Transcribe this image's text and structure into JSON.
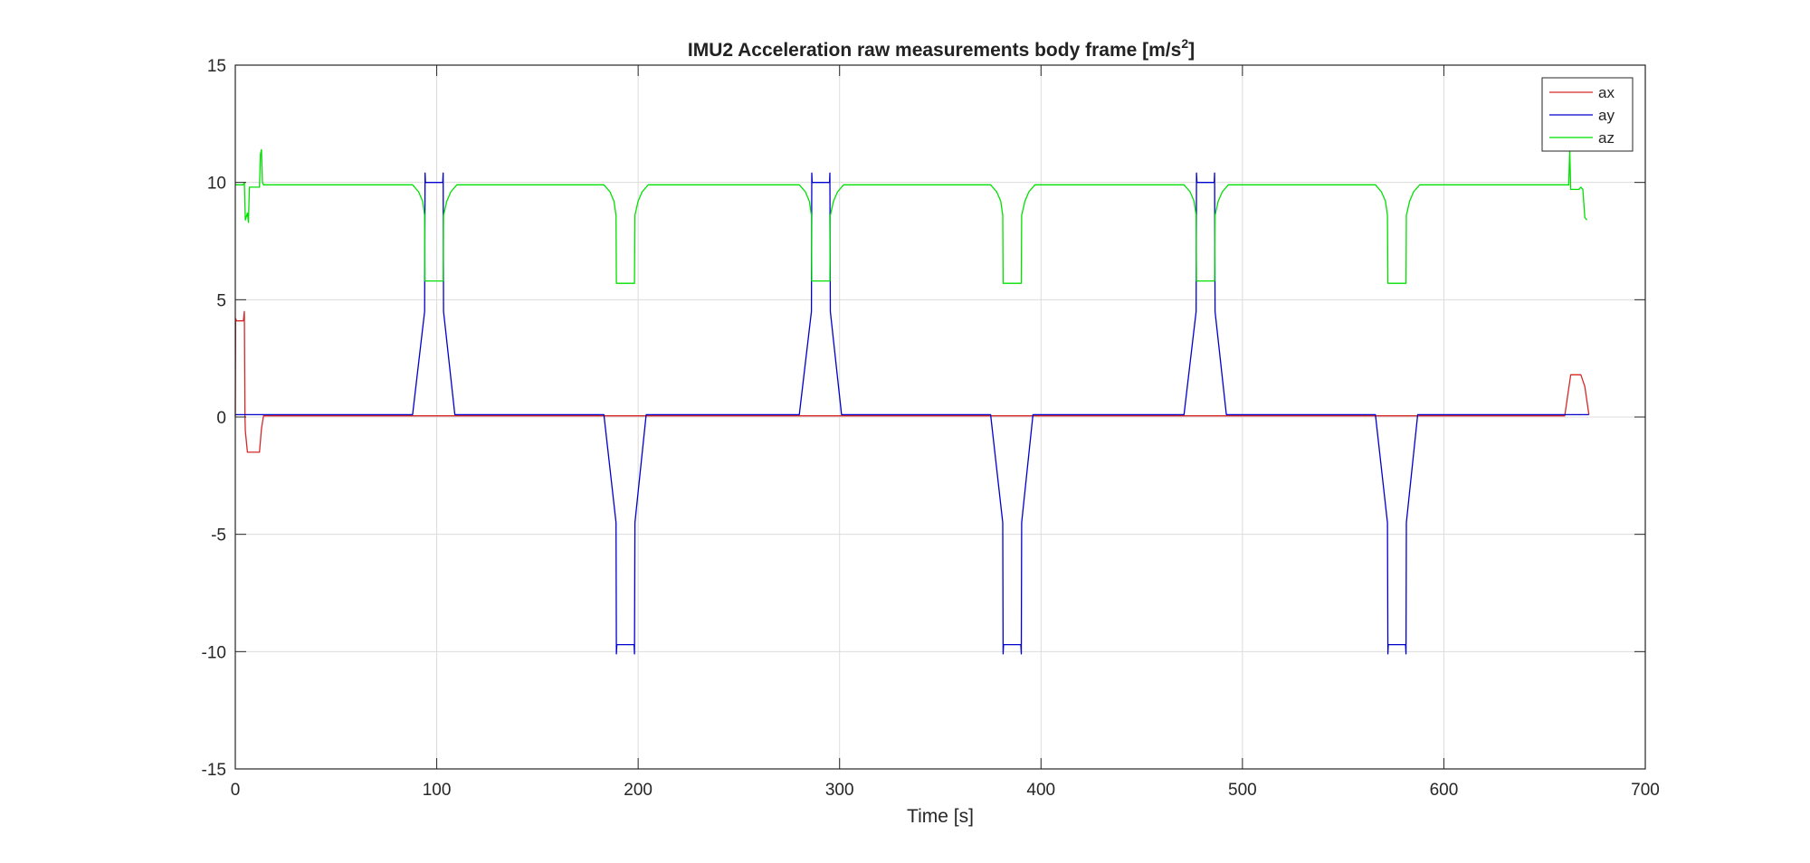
{
  "chart_data": {
    "type": "line",
    "title": "IMU2 Acceleration raw measurements body frame [m/s",
    "title_sup": "2",
    "title_end": "]",
    "xlabel": "Time [s]",
    "ylabel": "",
    "xlim": [
      0,
      700
    ],
    "ylim": [
      -15,
      15
    ],
    "xticks": [
      0,
      100,
      200,
      300,
      400,
      500,
      600,
      700
    ],
    "yticks": [
      -15,
      -10,
      -5,
      0,
      5,
      10,
      15
    ],
    "xtick_labels": [
      "0",
      "100",
      "200",
      "300",
      "400",
      "500",
      "600",
      "700"
    ],
    "ytick_labels": [
      "-15",
      "-10",
      "-5",
      "0",
      "5",
      "10",
      "15"
    ],
    "grid": true,
    "legend_position": "top-right",
    "series": [
      {
        "name": "ax",
        "color": "#d62728",
        "x": [
          0,
          0.2,
          0.6,
          4,
          4.5,
          4.8,
          5,
          6,
          7,
          12,
          13,
          14,
          100,
          200,
          300,
          400,
          500,
          600,
          660,
          663,
          668,
          670,
          672
        ],
        "y": [
          0,
          4.2,
          4.1,
          4.1,
          4.5,
          0,
          -0.6,
          -1.5,
          -1.5,
          -1.5,
          -0.5,
          0.05,
          0.05,
          0.05,
          0.05,
          0.05,
          0.05,
          0.05,
          0.05,
          1.8,
          1.8,
          1.3,
          0.1
        ]
      },
      {
        "name": "ay",
        "color": "#0000cc",
        "x": [
          0,
          88,
          94,
          94.2,
          94.4,
          103,
          103.2,
          103.4,
          109,
          183,
          189,
          189.2,
          189.4,
          198,
          198.2,
          198.4,
          204,
          280,
          286,
          286.2,
          286.4,
          295,
          295.2,
          295.4,
          301,
          375,
          381,
          381.2,
          381.4,
          390,
          390.2,
          390.4,
          396,
          471,
          477,
          477.2,
          477.4,
          486,
          486.2,
          486.4,
          492,
          566,
          572,
          572.2,
          572.4,
          581,
          581.2,
          581.4,
          587,
          672
        ],
        "y": [
          0.1,
          0.1,
          4.5,
          10.4,
          10,
          10,
          10.4,
          4.5,
          0.1,
          0.1,
          -4.5,
          -10.1,
          -9.7,
          -9.7,
          -10.1,
          -4.5,
          0.1,
          0.1,
          4.5,
          10.4,
          10,
          10,
          10.4,
          4.5,
          0.1,
          0.1,
          -4.5,
          -10.1,
          -9.7,
          -9.7,
          -10.1,
          -4.5,
          0.1,
          0.1,
          4.5,
          10.4,
          10,
          10,
          10.4,
          4.5,
          0.1,
          0.1,
          -4.5,
          -10.1,
          -9.7,
          -9.7,
          -10.1,
          -4.5,
          0.1,
          0.1
        ]
      },
      {
        "name": "az",
        "color": "#00e000",
        "x": [
          0,
          4,
          4.5,
          5,
          6,
          6.5,
          7,
          8,
          10,
          12,
          12.5,
          13,
          13.5,
          14,
          88,
          91,
          93,
          94,
          94.2,
          94.4,
          103,
          103.2,
          103.4,
          105,
          107,
          110,
          183,
          186,
          188,
          189,
          189.2,
          189.4,
          198,
          198.2,
          198.4,
          200,
          202,
          205,
          280,
          283,
          285,
          286,
          286.2,
          286.4,
          295,
          295.2,
          295.4,
          297,
          299,
          302,
          375,
          378,
          380,
          381,
          381.2,
          381.4,
          390,
          390.2,
          390.4,
          392,
          394,
          397,
          471,
          474,
          476,
          477,
          477.2,
          477.4,
          486,
          486.2,
          486.4,
          488,
          490,
          493,
          566,
          569,
          571,
          572,
          572.2,
          572.4,
          581,
          581.2,
          581.4,
          583,
          585,
          588,
          660,
          662,
          662.5,
          663,
          666,
          667,
          668,
          669,
          670,
          671
        ],
        "y": [
          9.9,
          9.9,
          10,
          8.4,
          8.7,
          8.3,
          9.8,
          9.8,
          9.8,
          9.8,
          11.2,
          11.4,
          10,
          9.9,
          9.9,
          9.6,
          9.2,
          8.6,
          5.8,
          5.8,
          5.8,
          5.8,
          8.6,
          9.2,
          9.6,
          9.9,
          9.9,
          9.6,
          9.2,
          8.6,
          5.7,
          5.7,
          5.7,
          5.7,
          8.6,
          9.2,
          9.6,
          9.9,
          9.9,
          9.6,
          9.2,
          8.6,
          5.8,
          5.8,
          5.8,
          5.8,
          8.6,
          9.2,
          9.6,
          9.9,
          9.9,
          9.6,
          9.2,
          8.6,
          5.7,
          5.7,
          5.7,
          5.7,
          8.6,
          9.2,
          9.6,
          9.9,
          9.9,
          9.6,
          9.2,
          8.6,
          5.8,
          5.8,
          5.8,
          5.8,
          8.6,
          9.2,
          9.6,
          9.9,
          9.9,
          9.6,
          9.2,
          8.6,
          5.7,
          5.7,
          5.7,
          5.7,
          8.6,
          9.2,
          9.6,
          9.9,
          9.9,
          9.9,
          11.4,
          9.7,
          9.7,
          9.7,
          9.8,
          9.7,
          8.5,
          8.4
        ]
      }
    ]
  }
}
